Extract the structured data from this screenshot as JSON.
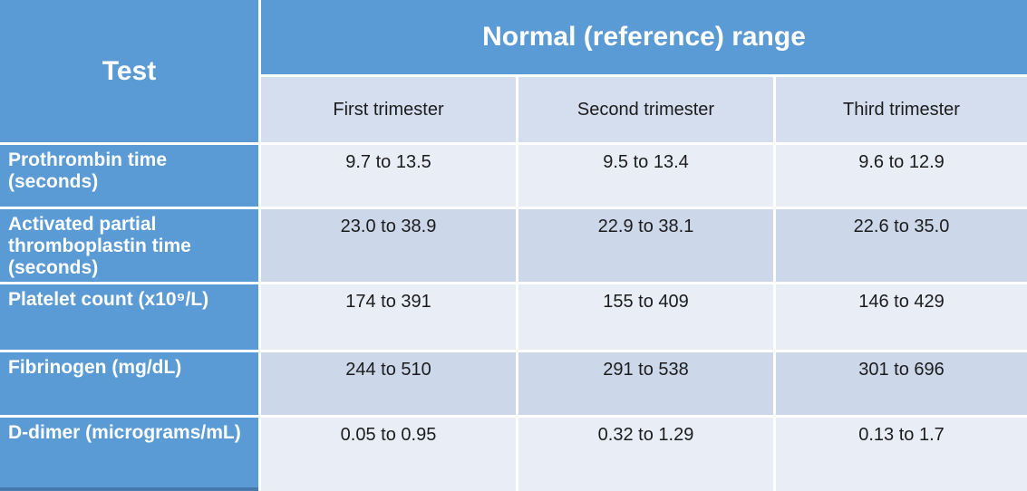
{
  "table": {
    "corner_header": "Test",
    "group_header": "Normal (reference) range",
    "column_headers": [
      "First trimester",
      "Second trimester",
      "Third trimester"
    ],
    "rows": [
      {
        "label": "Prothrombin time (seconds)",
        "values": [
          "9.7 to 13.5",
          "9.5 to 13.4",
          "9.6 to 12.9"
        ]
      },
      {
        "label": "Activated partial thromboplastin time (seconds)",
        "values": [
          "23.0 to 38.9",
          "22.9 to 38.1",
          "22.6 to 35.0"
        ]
      },
      {
        "label": "Platelet count (x10⁹/L)",
        "values": [
          "174 to 391",
          "155 to 409",
          "146 to 429"
        ]
      },
      {
        "label": "Fibrinogen (mg/dL)",
        "values": [
          "244 to 510",
          "291 to 538",
          "301 to 696"
        ]
      },
      {
        "label": "D-dimer (micrograms/mL)",
        "values": [
          "0.05 to 0.95",
          "0.32 to 1.29",
          "0.13 to 1.7"
        ]
      }
    ]
  },
  "colors": {
    "header_blue": "#5b9bd5",
    "subheader_bg": "#d5deef",
    "row_light_bg": "#e9edf6",
    "row_dark_bg": "#cdd7ea",
    "header_text": "#ffffff",
    "body_text": "#1c1c1c",
    "bottom_accent": "#4679ae"
  }
}
